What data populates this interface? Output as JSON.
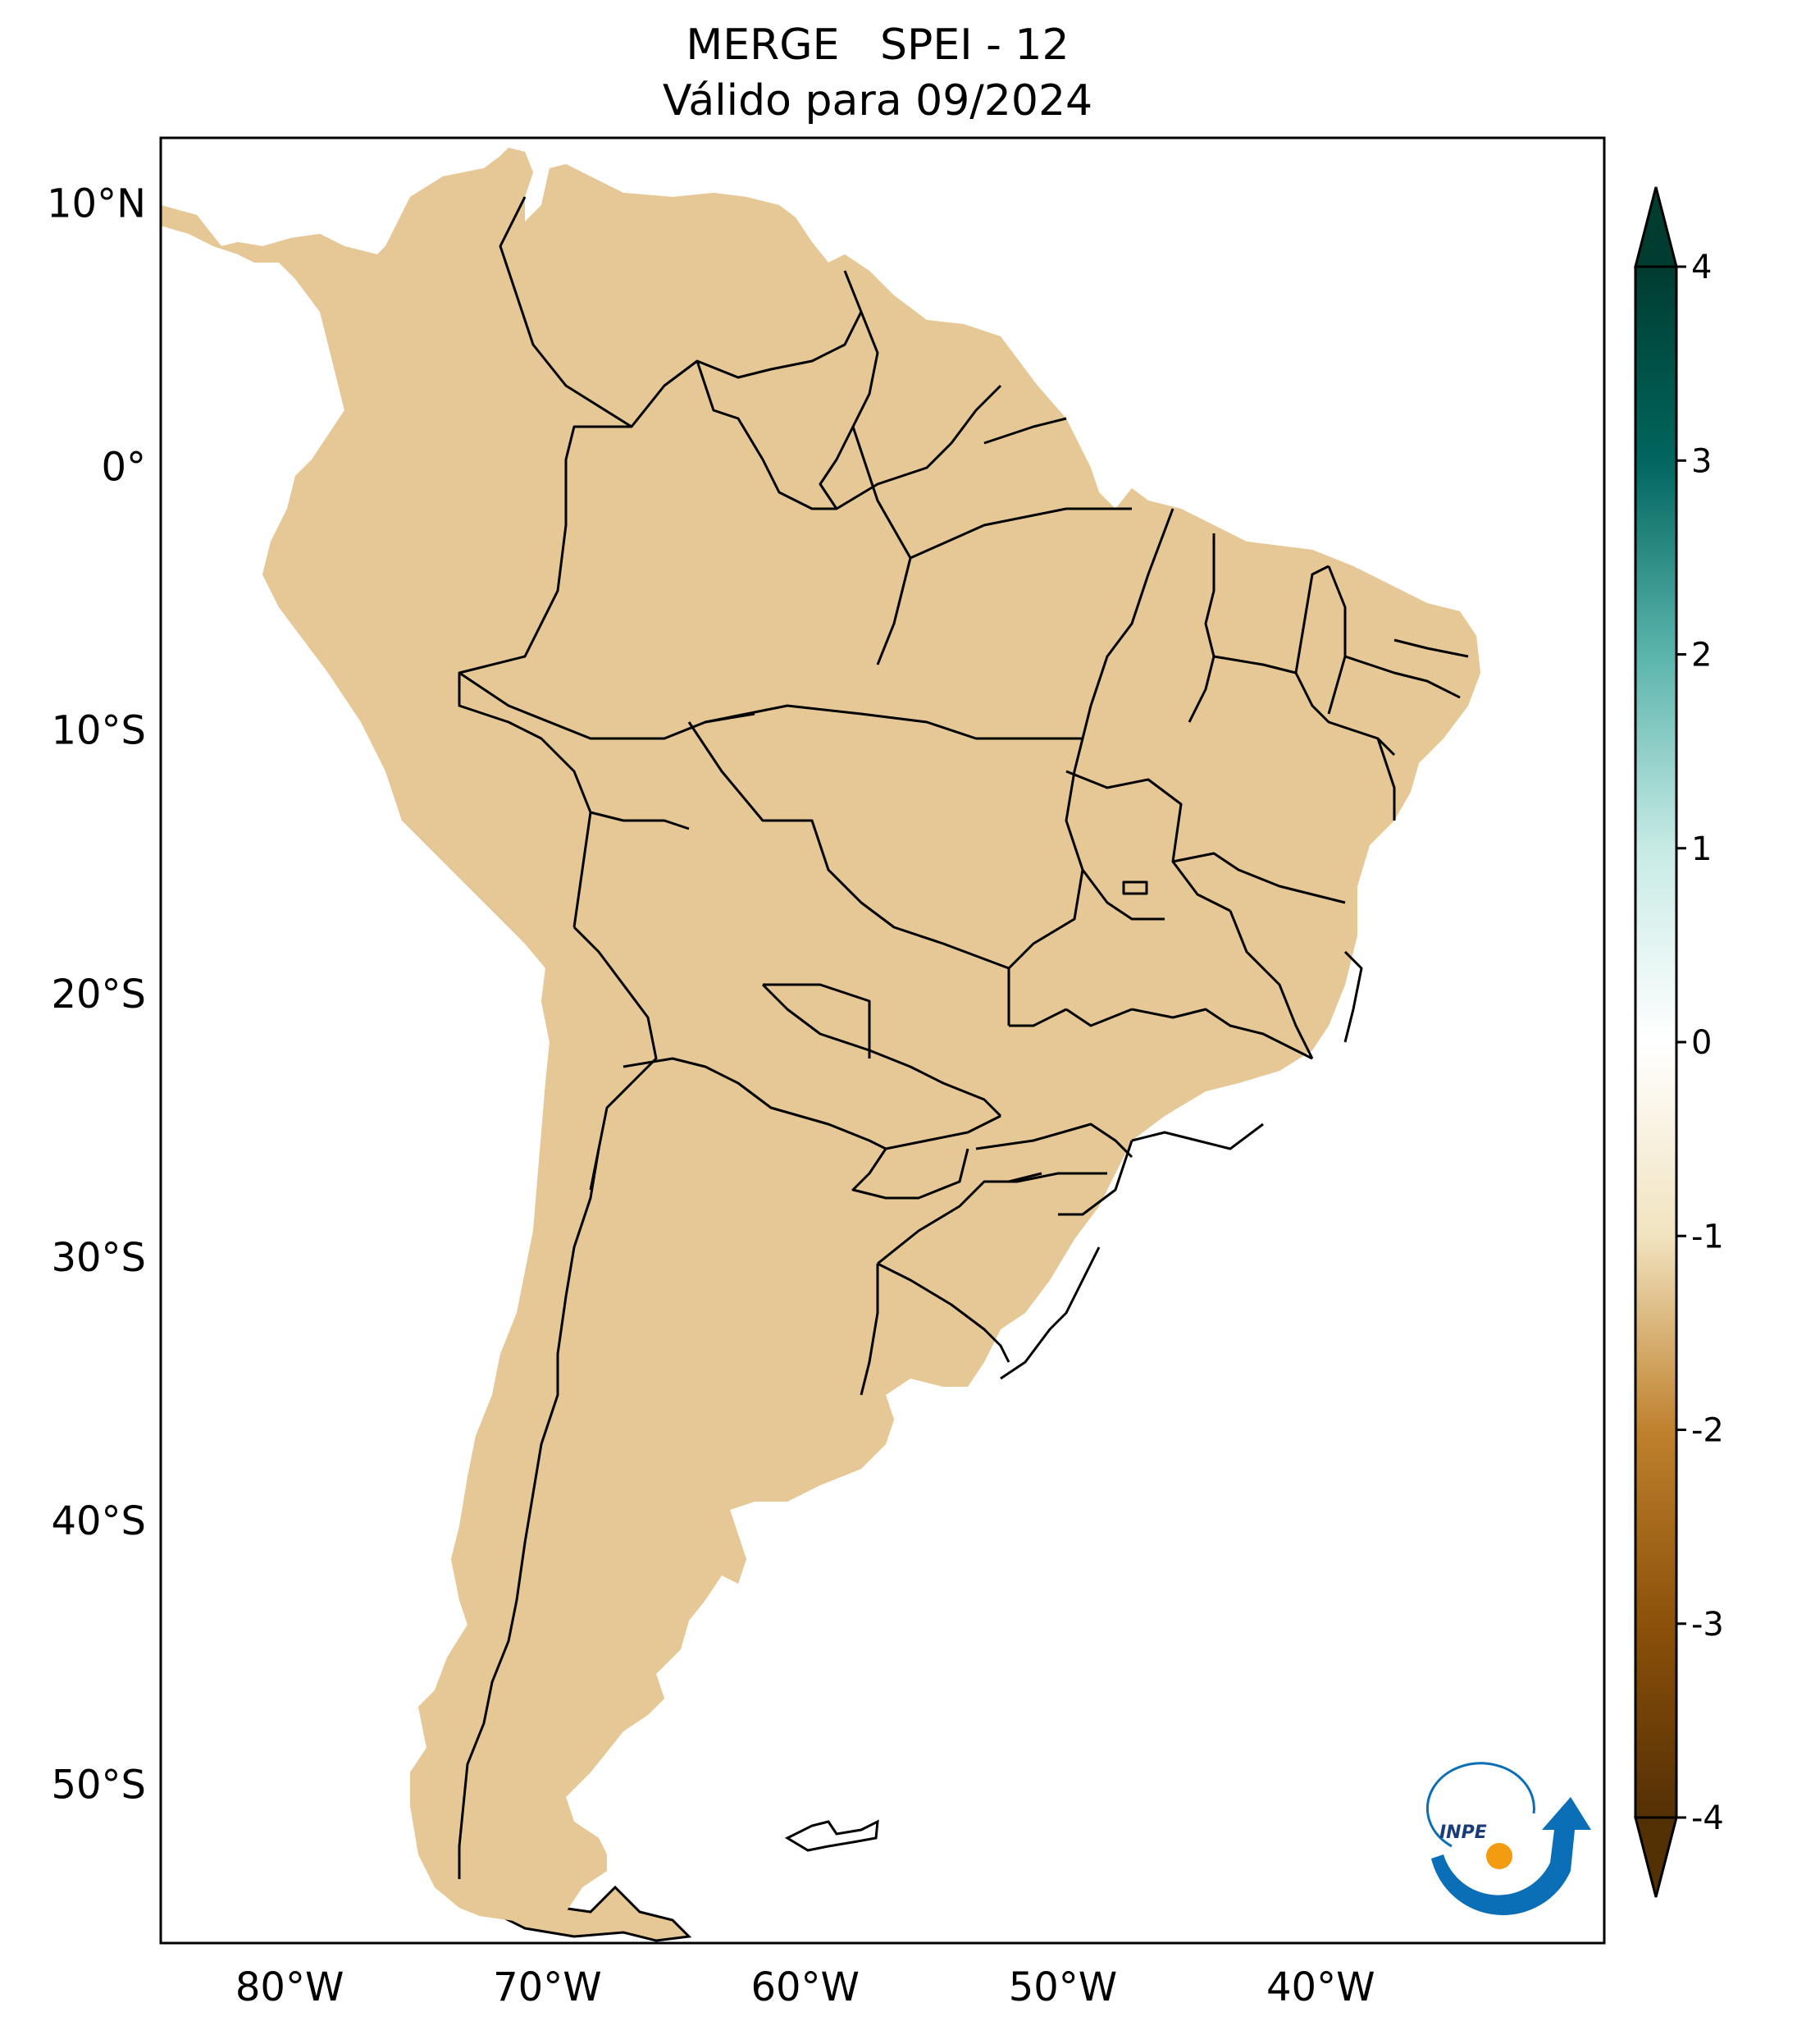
{
  "title": {
    "line1": "MERGE   SPEI - 12",
    "line2": "Válido para 09/2024"
  },
  "map": {
    "lat_range": [
      -56,
      12.5
    ],
    "lon_range": [
      -85,
      -29
    ],
    "lat_ticks": [
      {
        "value": 10,
        "label": "10°N"
      },
      {
        "value": 0,
        "label": "0°"
      },
      {
        "value": -10,
        "label": "10°S"
      },
      {
        "value": -20,
        "label": "20°S"
      },
      {
        "value": -30,
        "label": "30°S"
      },
      {
        "value": -40,
        "label": "40°S"
      },
      {
        "value": -50,
        "label": "50°S"
      }
    ],
    "lon_ticks": [
      {
        "value": -80,
        "label": "80°W"
      },
      {
        "value": -70,
        "label": "70°W"
      },
      {
        "value": -60,
        "label": "60°W"
      },
      {
        "value": -50,
        "label": "50°W"
      },
      {
        "value": -40,
        "label": "40°W"
      }
    ],
    "colors": {
      "ocean": "#ffffff",
      "border": "#000000"
    }
  },
  "colorbar": {
    "range": [
      -4,
      4
    ],
    "extend": "both",
    "ticks": [
      {
        "value": 4,
        "label": "4"
      },
      {
        "value": 3,
        "label": "3"
      },
      {
        "value": 2,
        "label": "2"
      },
      {
        "value": 1,
        "label": "1"
      },
      {
        "value": 0,
        "label": "0"
      },
      {
        "value": -1,
        "label": "-1"
      },
      {
        "value": -2,
        "label": "-2"
      },
      {
        "value": -3,
        "label": "-3"
      },
      {
        "value": -4,
        "label": "-4"
      }
    ],
    "stops": [
      {
        "value": -4,
        "color": "#543005"
      },
      {
        "value": -3,
        "color": "#8c510a"
      },
      {
        "value": -2,
        "color": "#bf812d"
      },
      {
        "value": -1,
        "color": "#f1e3bf"
      },
      {
        "value": 0,
        "color": "#ffffff"
      },
      {
        "value": 1,
        "color": "#c7eae5"
      },
      {
        "value": 2,
        "color": "#5ab4ac"
      },
      {
        "value": 3,
        "color": "#01665e"
      },
      {
        "value": 4,
        "color": "#003c30"
      }
    ]
  },
  "logo": {
    "text": "INPE",
    "colors": {
      "arc": "#0a6fb6",
      "dot": "#f39c12"
    }
  }
}
